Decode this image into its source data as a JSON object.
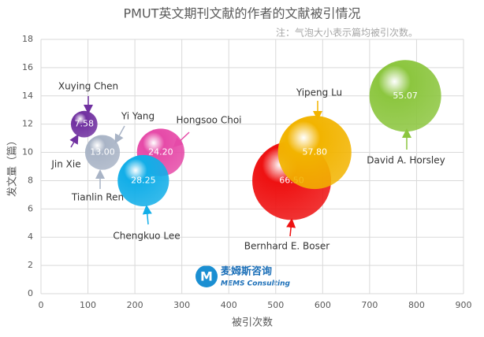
{
  "chart_data": {
    "type": "bubble",
    "title": "PMUT英文期刊文献的作者的文献被引情况",
    "subtitle": "注：气泡大小表示篇均被引次数。",
    "x_label": "被引次数",
    "y_label": "发文量（篇）",
    "xlim": [
      0,
      900
    ],
    "xticks": [
      0,
      100,
      200,
      300,
      400,
      500,
      600,
      700,
      800,
      900
    ],
    "ylim": [
      0,
      18
    ],
    "yticks": [
      0,
      2,
      4,
      6,
      8,
      10,
      12,
      14,
      16,
      18
    ],
    "grid": true,
    "series": [
      {
        "x": [
          92,
          131,
          255,
          218,
          534,
          583,
          776
        ],
        "values": [
          12,
          10,
          10,
          8,
          8,
          10,
          14
        ],
        "sizes": [
          7.58,
          13.0,
          24.2,
          28.25,
          66.5,
          57.8,
          55.07
        ],
        "size_labels": [
          "7.58",
          "13.00",
          "24.20",
          "28.25",
          "66.50",
          "57.80",
          "55.07"
        ],
        "colors": [
          "#7030a0",
          "#a9b4c6",
          "#e64aa8",
          "#12aee8",
          "#ee1111",
          "#f2b400",
          "#8cc63f"
        ]
      }
    ],
    "annotations": [
      {
        "text": "Xuying Chen",
        "color": "#7030a0"
      },
      {
        "text": "Yi Yang",
        "color": "#a9b4c6"
      },
      {
        "text": "Hongsoo Choi",
        "color": "#e64aa8"
      },
      {
        "text": "Jin Xie",
        "color": "#7030a0"
      },
      {
        "text": "Tianlin Ren",
        "color": "#a9b4c6"
      },
      {
        "text": "Chengkuo Lee",
        "color": "#12aee8"
      },
      {
        "text": "Yipeng Lu",
        "color": "#f2b400"
      },
      {
        "text": "Bernhard E. Boser",
        "color": "#ee1111"
      },
      {
        "text": "David A. Horsley",
        "color": "#8cc63f"
      }
    ]
  },
  "logo": {
    "name": "麦姆斯咨询",
    "english": "MEMS Consulting"
  }
}
